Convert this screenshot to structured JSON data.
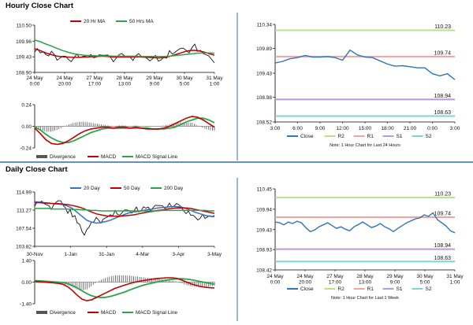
{
  "colors": {
    "price": "#111111",
    "ma_short": "#c00000",
    "ma_long": "#2aa34a",
    "ma_mid": "#3a6fc8",
    "macd": "#c00000",
    "signal": "#2aa34a",
    "divergence": "#555555",
    "close": "#2f74b8",
    "r2": "#b9e08a",
    "r1": "#f3a2a2",
    "s1": "#b79ad6",
    "s2": "#7fd3d6",
    "divider": "#2f6fb0",
    "grid": "#cccccc"
  },
  "sections": {
    "hourly_title": "Hourly Close Chart",
    "daily_title": "Daily Close Chart"
  },
  "chart_data": [
    {
      "id": "hourly_price",
      "type": "line",
      "legend": [
        "20 Hr MA",
        "50 Hrs MA"
      ],
      "y_ticks": [
        "110.50",
        "109.96",
        "109.43",
        "108.90"
      ],
      "ylim": [
        108.9,
        110.5
      ],
      "x_ticks": [
        "24 May\n0:00",
        "24 May\n20:00",
        "27 May\n17:00",
        "28 May\n13:00",
        "29 May\n9:00",
        "30 May\n5:00",
        "31 May\n1:00"
      ],
      "series": [
        {
          "name": "Price",
          "values": [
            109.65,
            109.58,
            109.48,
            109.56,
            109.35,
            109.45,
            109.3,
            109.46,
            109.42,
            109.43,
            109.45,
            109.46,
            109.48,
            109.45,
            109.32,
            109.52,
            109.44,
            109.36,
            109.5,
            109.44,
            109.33,
            109.42,
            109.3,
            109.4,
            109.58,
            109.62,
            109.72,
            109.6,
            109.8,
            109.63,
            109.52,
            109.4,
            109.26
          ]
        },
        {
          "name": "20 Hr MA",
          "values": [
            109.7,
            109.64,
            109.56,
            109.5,
            109.45,
            109.43,
            109.42,
            109.41,
            109.41,
            109.42,
            109.43,
            109.44,
            109.45,
            109.44,
            109.42,
            109.42,
            109.42,
            109.42,
            109.43,
            109.42,
            109.41,
            109.4,
            109.39,
            109.4,
            109.44,
            109.5,
            109.56,
            109.62,
            109.65,
            109.64,
            109.6,
            109.54,
            109.48
          ]
        },
        {
          "name": "50 Hrs MA",
          "values": [
            110.0,
            109.94,
            109.86,
            109.79,
            109.71,
            109.64,
            109.58,
            109.53,
            109.5,
            109.48,
            109.47,
            109.46,
            109.46,
            109.46,
            109.45,
            109.45,
            109.45,
            109.45,
            109.45,
            109.44,
            109.44,
            109.44,
            109.44,
            109.44,
            109.45,
            109.47,
            109.49,
            109.51,
            109.53,
            109.55,
            109.56,
            109.56,
            109.55
          ]
        }
      ]
    },
    {
      "id": "hourly_macd",
      "type": "line",
      "legend": [
        "Divergence",
        "MACD",
        "MACD Signal Line"
      ],
      "y_ticks": [
        "0.24",
        "0.00",
        "-0.24"
      ],
      "ylim": [
        -0.24,
        0.24
      ],
      "series": [
        {
          "name": "MACD",
          "values": [
            -0.02,
            -0.08,
            -0.15,
            -0.19,
            -0.2,
            -0.19,
            -0.16,
            -0.12,
            -0.08,
            -0.05,
            -0.03,
            -0.02,
            -0.01,
            -0.01,
            -0.02,
            -0.01,
            -0.01,
            -0.02,
            -0.01,
            -0.02,
            -0.03,
            -0.03,
            -0.03,
            -0.02,
            0.0,
            0.03,
            0.06,
            0.09,
            0.11,
            0.1,
            0.07,
            0.03,
            -0.01
          ]
        },
        {
          "name": "MACD Signal Line",
          "values": [
            -0.01,
            -0.04,
            -0.09,
            -0.13,
            -0.16,
            -0.18,
            -0.18,
            -0.16,
            -0.13,
            -0.1,
            -0.07,
            -0.05,
            -0.03,
            -0.02,
            -0.02,
            -0.02,
            -0.02,
            -0.02,
            -0.02,
            -0.02,
            -0.02,
            -0.03,
            -0.03,
            -0.03,
            -0.02,
            -0.01,
            0.02,
            0.05,
            0.07,
            0.09,
            0.09,
            0.07,
            0.04
          ]
        }
      ]
    },
    {
      "id": "hourly_close",
      "type": "line",
      "y_ticks": [
        "110.34",
        "109.89",
        "109.43",
        "108.98",
        "108.52"
      ],
      "ylim": [
        108.52,
        110.34
      ],
      "x_ticks": [
        "3:00",
        "6:00",
        "9:00",
        "12:00",
        "15:00",
        "18:00",
        "21:00",
        "0:00",
        "3:00"
      ],
      "levels": [
        {
          "name": "R2",
          "value": 110.23
        },
        {
          "name": "R1",
          "value": 109.74
        },
        {
          "name": "S1",
          "value": 108.94
        },
        {
          "name": "S2",
          "value": 108.63
        }
      ],
      "legend": [
        "Close",
        "R2",
        "R1",
        "S1",
        "S2"
      ],
      "note": "Note: 1 Hour Chart for Last 24 Hours",
      "series": [
        {
          "name": "Close",
          "values": [
            109.62,
            109.65,
            109.7,
            109.72,
            109.76,
            109.73,
            109.73,
            109.74,
            109.72,
            109.67,
            109.86,
            109.77,
            109.73,
            109.72,
            109.66,
            109.6,
            109.56,
            109.57,
            109.55,
            109.53,
            109.53,
            109.42,
            109.38,
            109.42,
            109.31
          ]
        }
      ]
    },
    {
      "id": "daily_price",
      "type": "line",
      "legend": [
        "20 Day",
        "50 Day",
        "200 Day"
      ],
      "y_ticks": [
        "114.99",
        "111.27",
        "107.54",
        "103.82"
      ],
      "ylim": [
        103.82,
        114.99
      ],
      "x_ticks": [
        "30-Nov",
        "1-Jan",
        "31-Jan",
        "4-Mar",
        "3-Apr",
        "3-May"
      ],
      "series": [
        {
          "name": "Price",
          "values": [
            112.5,
            113.0,
            112.5,
            111.8,
            112.6,
            113.2,
            112.0,
            111.0,
            110.0,
            108.5,
            106.5,
            107.5,
            108.8,
            109.5,
            109.0,
            109.8,
            110.2,
            110.8,
            110.5,
            111.3,
            110.9,
            111.5,
            111.0,
            111.8,
            111.5,
            112.0,
            112.2,
            111.9,
            112.3,
            112.0,
            112.5,
            111.5,
            110.8,
            110.2,
            109.5,
            110.0,
            109.7,
            110.0,
            109.8
          ]
        },
        {
          "name": "20 Day",
          "values": [
            113.0,
            112.9,
            112.8,
            112.7,
            112.6,
            112.5,
            112.4,
            112.1,
            111.6,
            110.8,
            110.0,
            109.2,
            108.8,
            108.6,
            108.7,
            108.9,
            109.2,
            109.6,
            110.0,
            110.4,
            110.7,
            110.9,
            111.0,
            111.2,
            111.4,
            111.5,
            111.7,
            111.8,
            111.9,
            112.0,
            112.0,
            111.9,
            111.6,
            111.2,
            110.8,
            110.5,
            110.2,
            110.0,
            109.9
          ]
        },
        {
          "name": "50 Day",
          "values": [
            112.8,
            112.8,
            112.7,
            112.7,
            112.6,
            112.6,
            112.5,
            112.4,
            112.2,
            112.0,
            111.7,
            111.3,
            110.9,
            110.5,
            110.3,
            110.1,
            110.0,
            110.0,
            110.0,
            110.1,
            110.2,
            110.3,
            110.5,
            110.7,
            110.9,
            111.0,
            111.2,
            111.3,
            111.5,
            111.6,
            111.7,
            111.7,
            111.7,
            111.6,
            111.4,
            111.2,
            111.0,
            110.8,
            110.6
          ]
        },
        {
          "name": "200 Day",
          "values": [
            111.6,
            111.6,
            111.6,
            111.6,
            111.5,
            111.5,
            111.5,
            111.5,
            111.4,
            111.4,
            111.3,
            111.3,
            111.2,
            111.2,
            111.1,
            111.1,
            111.1,
            111.1,
            111.1,
            111.1,
            111.1,
            111.1,
            111.1,
            111.1,
            111.1,
            111.1,
            111.1,
            111.2,
            111.2,
            111.2,
            111.2,
            111.2,
            111.2,
            111.2,
            111.2,
            111.2,
            111.2,
            111.1,
            111.1
          ]
        }
      ]
    },
    {
      "id": "daily_macd",
      "type": "line",
      "legend": [
        "Divergence",
        "MACD",
        "MACD Signal Line"
      ],
      "y_ticks": [
        "1.40",
        "0.00",
        "-1.40"
      ],
      "ylim": [
        -1.4,
        1.4
      ],
      "series": [
        {
          "name": "MACD",
          "values": [
            0.05,
            0.02,
            0.0,
            -0.02,
            -0.05,
            -0.08,
            -0.15,
            -0.3,
            -0.55,
            -0.85,
            -1.1,
            -1.2,
            -1.15,
            -1.0,
            -0.85,
            -0.7,
            -0.55,
            -0.4,
            -0.3,
            -0.2,
            -0.1,
            -0.02,
            0.05,
            0.1,
            0.15,
            0.2,
            0.24,
            0.26,
            0.28,
            0.28,
            0.25,
            0.15,
            0.02,
            -0.1,
            -0.2,
            -0.28,
            -0.33,
            -0.36,
            -0.38
          ]
        },
        {
          "name": "MACD Signal Line",
          "values": [
            0.1,
            0.08,
            0.06,
            0.04,
            0.02,
            0.0,
            -0.03,
            -0.1,
            -0.22,
            -0.38,
            -0.56,
            -0.74,
            -0.88,
            -0.96,
            -1.0,
            -0.98,
            -0.92,
            -0.84,
            -0.74,
            -0.64,
            -0.52,
            -0.4,
            -0.3,
            -0.2,
            -0.12,
            -0.05,
            0.02,
            0.08,
            0.14,
            0.18,
            0.21,
            0.22,
            0.2,
            0.16,
            0.1,
            0.04,
            -0.02,
            -0.08,
            -0.14
          ]
        }
      ]
    },
    {
      "id": "weekly_close",
      "type": "line",
      "y_ticks": [
        "110.45",
        "109.94",
        "109.43",
        "108.93",
        "108.42"
      ],
      "ylim": [
        108.42,
        110.45
      ],
      "x_ticks": [
        "24 May\n0:00",
        "24 May\n20:00",
        "27 May\n17:00",
        "28 May\n13:00",
        "29 May\n9:00",
        "30 May\n5:00",
        "31 May\n1:00"
      ],
      "levels": [
        {
          "name": "R2",
          "value": 110.23
        },
        {
          "name": "R1",
          "value": 109.74
        },
        {
          "name": "S1",
          "value": 108.94
        },
        {
          "name": "S2",
          "value": 108.63
        }
      ],
      "legend": [
        "Close",
        "R2",
        "R1",
        "S1",
        "S2"
      ],
      "note": "Note: 1 Hour Chart for Last 1 Week",
      "series": [
        {
          "name": "Close",
          "values": [
            109.62,
            109.6,
            109.55,
            109.62,
            109.58,
            109.64,
            109.6,
            109.48,
            109.38,
            109.42,
            109.5,
            109.55,
            109.6,
            109.53,
            109.46,
            109.5,
            109.44,
            109.4,
            109.5,
            109.56,
            109.62,
            109.55,
            109.48,
            109.52,
            109.58,
            109.5,
            109.45,
            109.38,
            109.46,
            109.53,
            109.6,
            109.65,
            109.7,
            109.72,
            109.8,
            109.76,
            109.85,
            109.68,
            109.6,
            109.52,
            109.4,
            109.35
          ]
        }
      ]
    }
  ]
}
